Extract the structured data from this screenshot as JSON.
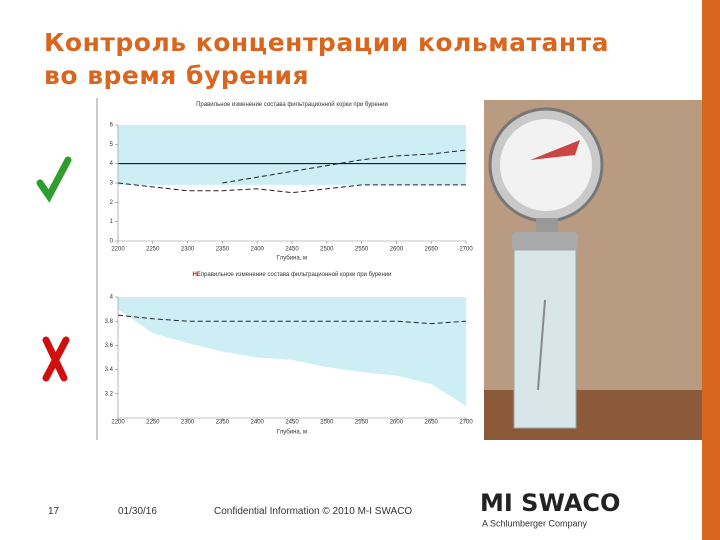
{
  "header": {
    "title_line1": "Контроль концентрации кольматанта",
    "title_line2": "во время бурения"
  },
  "footer": {
    "page": "17",
    "date": "01/30/16",
    "note": "Confidential Information © 2010 M-I SWACO",
    "logo": "MI SWACO",
    "logo_sub": "A Schlumberger Company"
  },
  "chart_data": [
    {
      "type": "line",
      "title": "Правильное изменение состава фильтрационной корки при бурении",
      "x_label": "Глубина, м",
      "x": [
        2200,
        2250,
        2300,
        2350,
        2400,
        2450,
        2500,
        2550,
        2600,
        2650,
        2700
      ],
      "xlim": [
        2200,
        2700
      ],
      "xticks": [
        2200,
        2250,
        2300,
        2350,
        2400,
        2450,
        2500,
        2550,
        2600,
        2650,
        2700
      ],
      "ylim": [
        0,
        6
      ],
      "yticks": [
        0,
        1,
        2,
        3,
        4,
        5,
        6
      ],
      "series": [
        {
          "style": "band",
          "color": "#cdeef4",
          "values": [
            2.9,
            2.9,
            2.9,
            2.9,
            2.9,
            2.9,
            2.9,
            2.9,
            2.9,
            2.9,
            2.9
          ]
        },
        {
          "style": "solid",
          "color": "#000000",
          "values": [
            4,
            4,
            4,
            4,
            4,
            4,
            4,
            4,
            4,
            4,
            4
          ]
        },
        {
          "style": "dashed",
          "color": "#222222",
          "values": [
            3.0,
            2.8,
            2.6,
            2.6,
            2.7,
            2.5,
            2.7,
            2.9,
            2.9,
            2.9,
            2.9
          ]
        },
        {
          "style": "dashed",
          "color": "#222222",
          "values": [
            null,
            null,
            null,
            3.0,
            3.3,
            3.6,
            3.9,
            4.2,
            4.4,
            4.5,
            4.7
          ]
        }
      ]
    },
    {
      "type": "line",
      "title_prefix": "НЕ",
      "title": "правильное изменение состава фильтрационной корки при бурении",
      "x_label": "Глубина, м",
      "x": [
        2200,
        2250,
        2300,
        2350,
        2400,
        2450,
        2500,
        2550,
        2600,
        2650,
        2700
      ],
      "xlim": [
        2200,
        2700
      ],
      "xticks": [
        2200,
        2250,
        2300,
        2350,
        2400,
        2450,
        2500,
        2550,
        2600,
        2650,
        2700
      ],
      "ylim": [
        3.0,
        4.0
      ],
      "yticks": [
        3.2,
        3.4,
        3.6,
        3.8,
        4.0
      ],
      "series": [
        {
          "style": "band",
          "color": "#cdeef4",
          "values": [
            3.9,
            3.7,
            3.62,
            3.55,
            3.5,
            3.48,
            3.42,
            3.38,
            3.35,
            3.28,
            3.1
          ]
        },
        {
          "style": "dashed",
          "color": "#222222",
          "values": [
            3.85,
            3.82,
            3.8,
            3.8,
            3.8,
            3.8,
            3.8,
            3.8,
            3.8,
            3.78,
            3.8
          ]
        }
      ]
    }
  ]
}
